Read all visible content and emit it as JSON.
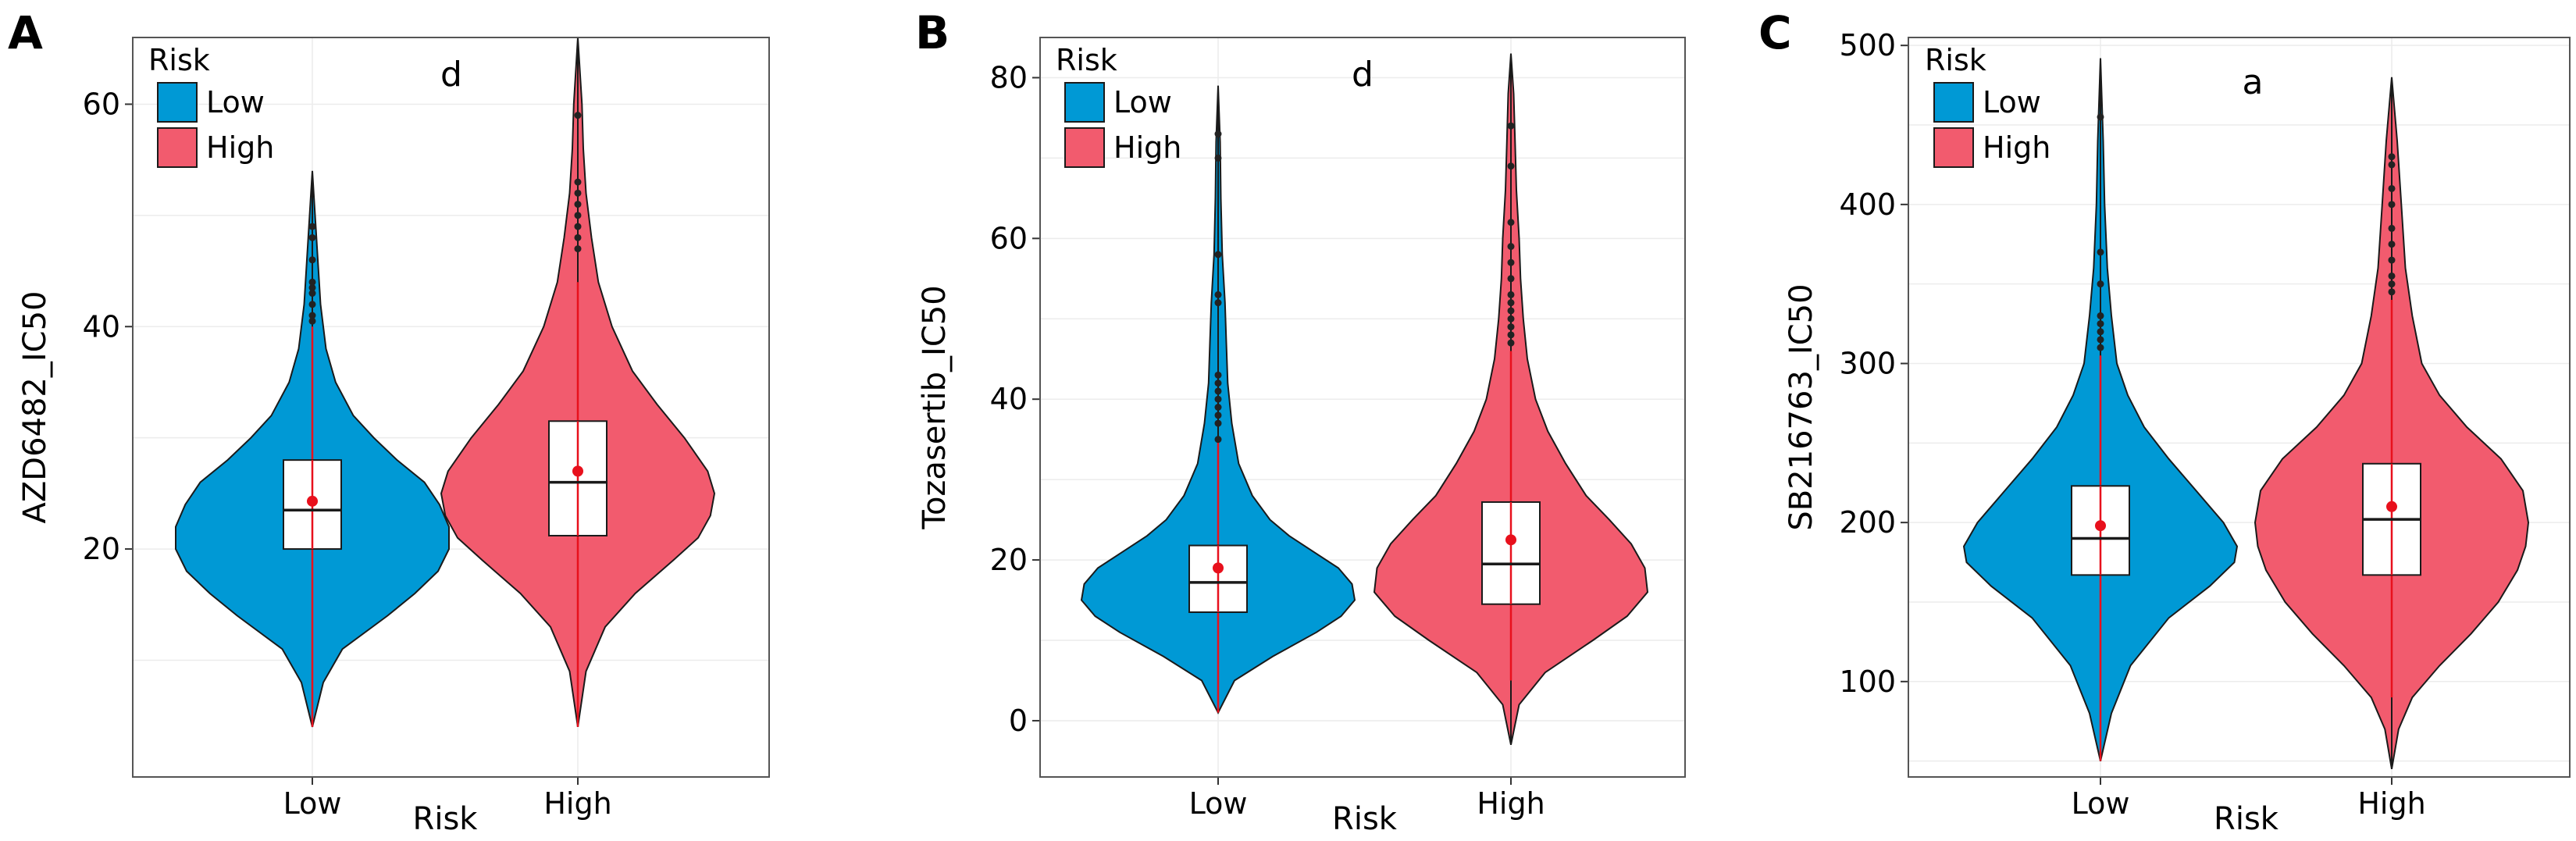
{
  "colors": {
    "low": "#0099d5",
    "high": "#f25b6e",
    "mean_point": "#e8101c",
    "whisker": "#e8101c"
  },
  "chart_data": [
    {
      "type": "violin",
      "panel_label": "A",
      "ylabel": "AZD6482_IC50",
      "xlabel": "Risk",
      "categories": [
        "Low",
        "High"
      ],
      "yticks": [
        20,
        40,
        60
      ],
      "ylim": [
        -0.5,
        66
      ],
      "legend": {
        "title": "Risk",
        "entries": [
          "Low",
          "High"
        ],
        "position": "top-left"
      },
      "annotation": "d",
      "grid": true,
      "series": [
        {
          "name": "Low",
          "min": 4,
          "max": 54,
          "q1": 20,
          "median": 23.5,
          "q3": 28,
          "mean": 24.3,
          "whisker_low": 4,
          "whisker_high": 40,
          "outliers": [
            40.5,
            41,
            42,
            43,
            43.5,
            44,
            46,
            48,
            49
          ],
          "density": [
            [
              4,
              0
            ],
            [
              8,
              0.08
            ],
            [
              11,
              0.22
            ],
            [
              14,
              0.55
            ],
            [
              16,
              0.75
            ],
            [
              18,
              0.92
            ],
            [
              20,
              1.0
            ],
            [
              22,
              1.0
            ],
            [
              24,
              0.93
            ],
            [
              26,
              0.82
            ],
            [
              28,
              0.62
            ],
            [
              30,
              0.45
            ],
            [
              32,
              0.3
            ],
            [
              35,
              0.17
            ],
            [
              38,
              0.1
            ],
            [
              42,
              0.06
            ],
            [
              46,
              0.04
            ],
            [
              50,
              0.02
            ],
            [
              54,
              0
            ]
          ]
        },
        {
          "name": "High",
          "min": 4,
          "max": 66,
          "q1": 21.2,
          "median": 26,
          "q3": 31.5,
          "mean": 27,
          "whisker_low": 4,
          "whisker_high": 44,
          "outliers": [
            47,
            48,
            49,
            50,
            51,
            52,
            53,
            59
          ],
          "density": [
            [
              4,
              0
            ],
            [
              9,
              0.06
            ],
            [
              13,
              0.2
            ],
            [
              16,
              0.42
            ],
            [
              19,
              0.7
            ],
            [
              21,
              0.88
            ],
            [
              23,
              0.97
            ],
            [
              25,
              1.0
            ],
            [
              27,
              0.95
            ],
            [
              30,
              0.78
            ],
            [
              33,
              0.58
            ],
            [
              36,
              0.4
            ],
            [
              40,
              0.25
            ],
            [
              44,
              0.15
            ],
            [
              48,
              0.1
            ],
            [
              52,
              0.06
            ],
            [
              56,
              0.04
            ],
            [
              60,
              0.03
            ],
            [
              66,
              0
            ]
          ]
        }
      ]
    },
    {
      "type": "violin",
      "panel_label": "B",
      "ylabel": "Tozasertib_IC50",
      "xlabel": "Risk",
      "categories": [
        "Low",
        "High"
      ],
      "yticks": [
        0,
        20,
        40,
        60,
        80
      ],
      "ylim": [
        -7,
        85
      ],
      "legend": {
        "title": "Risk",
        "entries": [
          "Low",
          "High"
        ],
        "position": "top-left"
      },
      "annotation": "d",
      "grid": true,
      "series": [
        {
          "name": "Low",
          "min": 1,
          "max": 79,
          "q1": 13.5,
          "median": 17.2,
          "q3": 21.8,
          "mean": 19,
          "whisker_low": 1,
          "whisker_high": 35,
          "outliers": [
            35,
            37,
            38,
            39,
            40,
            41,
            42,
            43,
            52,
            53,
            58,
            70,
            73
          ],
          "density": [
            [
              1,
              0
            ],
            [
              5,
              0.12
            ],
            [
              8,
              0.4
            ],
            [
              11,
              0.72
            ],
            [
              13,
              0.9
            ],
            [
              15,
              1.0
            ],
            [
              17,
              0.98
            ],
            [
              19,
              0.88
            ],
            [
              21,
              0.7
            ],
            [
              23,
              0.52
            ],
            [
              25,
              0.38
            ],
            [
              28,
              0.25
            ],
            [
              32,
              0.15
            ],
            [
              37,
              0.1
            ],
            [
              42,
              0.07
            ],
            [
              47,
              0.06
            ],
            [
              52,
              0.05
            ],
            [
              58,
              0.03
            ],
            [
              65,
              0.02
            ],
            [
              72,
              0.015
            ],
            [
              79,
              0
            ]
          ]
        },
        {
          "name": "High",
          "min": -3,
          "max": 83,
          "q1": 14.5,
          "median": 19.5,
          "q3": 27.2,
          "mean": 22.5,
          "whisker_low": 5,
          "whisker_high": 46,
          "outliers": [
            47,
            48,
            49,
            50,
            51,
            52,
            53,
            55,
            57,
            59,
            62,
            69,
            74
          ],
          "density": [
            [
              -3,
              0
            ],
            [
              2,
              0.06
            ],
            [
              6,
              0.25
            ],
            [
              10,
              0.6
            ],
            [
              13,
              0.85
            ],
            [
              16,
              1.0
            ],
            [
              19,
              0.98
            ],
            [
              22,
              0.88
            ],
            [
              25,
              0.72
            ],
            [
              28,
              0.55
            ],
            [
              32,
              0.4
            ],
            [
              36,
              0.27
            ],
            [
              40,
              0.18
            ],
            [
              45,
              0.12
            ],
            [
              50,
              0.09
            ],
            [
              55,
              0.07
            ],
            [
              60,
              0.06
            ],
            [
              66,
              0.04
            ],
            [
              72,
              0.03
            ],
            [
              78,
              0.02
            ],
            [
              83,
              0
            ]
          ]
        }
      ]
    },
    {
      "type": "violin",
      "panel_label": "C",
      "ylabel": "SB216763_IC50",
      "xlabel": "Risk",
      "categories": [
        "Low",
        "High"
      ],
      "yticks": [
        100,
        200,
        300,
        400,
        500
      ],
      "ylim": [
        40,
        505
      ],
      "legend": {
        "title": "Risk",
        "entries": [
          "Low",
          "High"
        ],
        "position": "top-left"
      },
      "annotation": "a",
      "grid": true,
      "series": [
        {
          "name": "Low",
          "min": 50,
          "max": 492,
          "q1": 167,
          "median": 190,
          "q3": 223,
          "mean": 198,
          "whisker_low": 50,
          "whisker_high": 305,
          "outliers": [
            310,
            315,
            320,
            325,
            330,
            350,
            370,
            455
          ],
          "density": [
            [
              50,
              0
            ],
            [
              80,
              0.08
            ],
            [
              110,
              0.22
            ],
            [
              140,
              0.5
            ],
            [
              160,
              0.8
            ],
            [
              175,
              0.98
            ],
            [
              185,
              1.0
            ],
            [
              200,
              0.9
            ],
            [
              220,
              0.7
            ],
            [
              240,
              0.5
            ],
            [
              260,
              0.32
            ],
            [
              280,
              0.2
            ],
            [
              300,
              0.12
            ],
            [
              330,
              0.08
            ],
            [
              360,
              0.05
            ],
            [
              400,
              0.03
            ],
            [
              440,
              0.02
            ],
            [
              492,
              0
            ]
          ]
        },
        {
          "name": "High",
          "min": 45,
          "max": 480,
          "q1": 167,
          "median": 202,
          "q3": 237,
          "mean": 210,
          "whisker_low": 90,
          "whisker_high": 340,
          "outliers": [
            345,
            350,
            355,
            365,
            375,
            385,
            400,
            410,
            425,
            430
          ],
          "density": [
            [
              45,
              0
            ],
            [
              70,
              0.05
            ],
            [
              90,
              0.15
            ],
            [
              110,
              0.35
            ],
            [
              130,
              0.58
            ],
            [
              150,
              0.78
            ],
            [
              170,
              0.92
            ],
            [
              185,
              0.98
            ],
            [
              200,
              1.0
            ],
            [
              220,
              0.96
            ],
            [
              240,
              0.8
            ],
            [
              260,
              0.55
            ],
            [
              280,
              0.35
            ],
            [
              300,
              0.22
            ],
            [
              330,
              0.15
            ],
            [
              360,
              0.1
            ],
            [
              400,
              0.07
            ],
            [
              440,
              0.04
            ],
            [
              480,
              0
            ]
          ]
        }
      ]
    }
  ]
}
